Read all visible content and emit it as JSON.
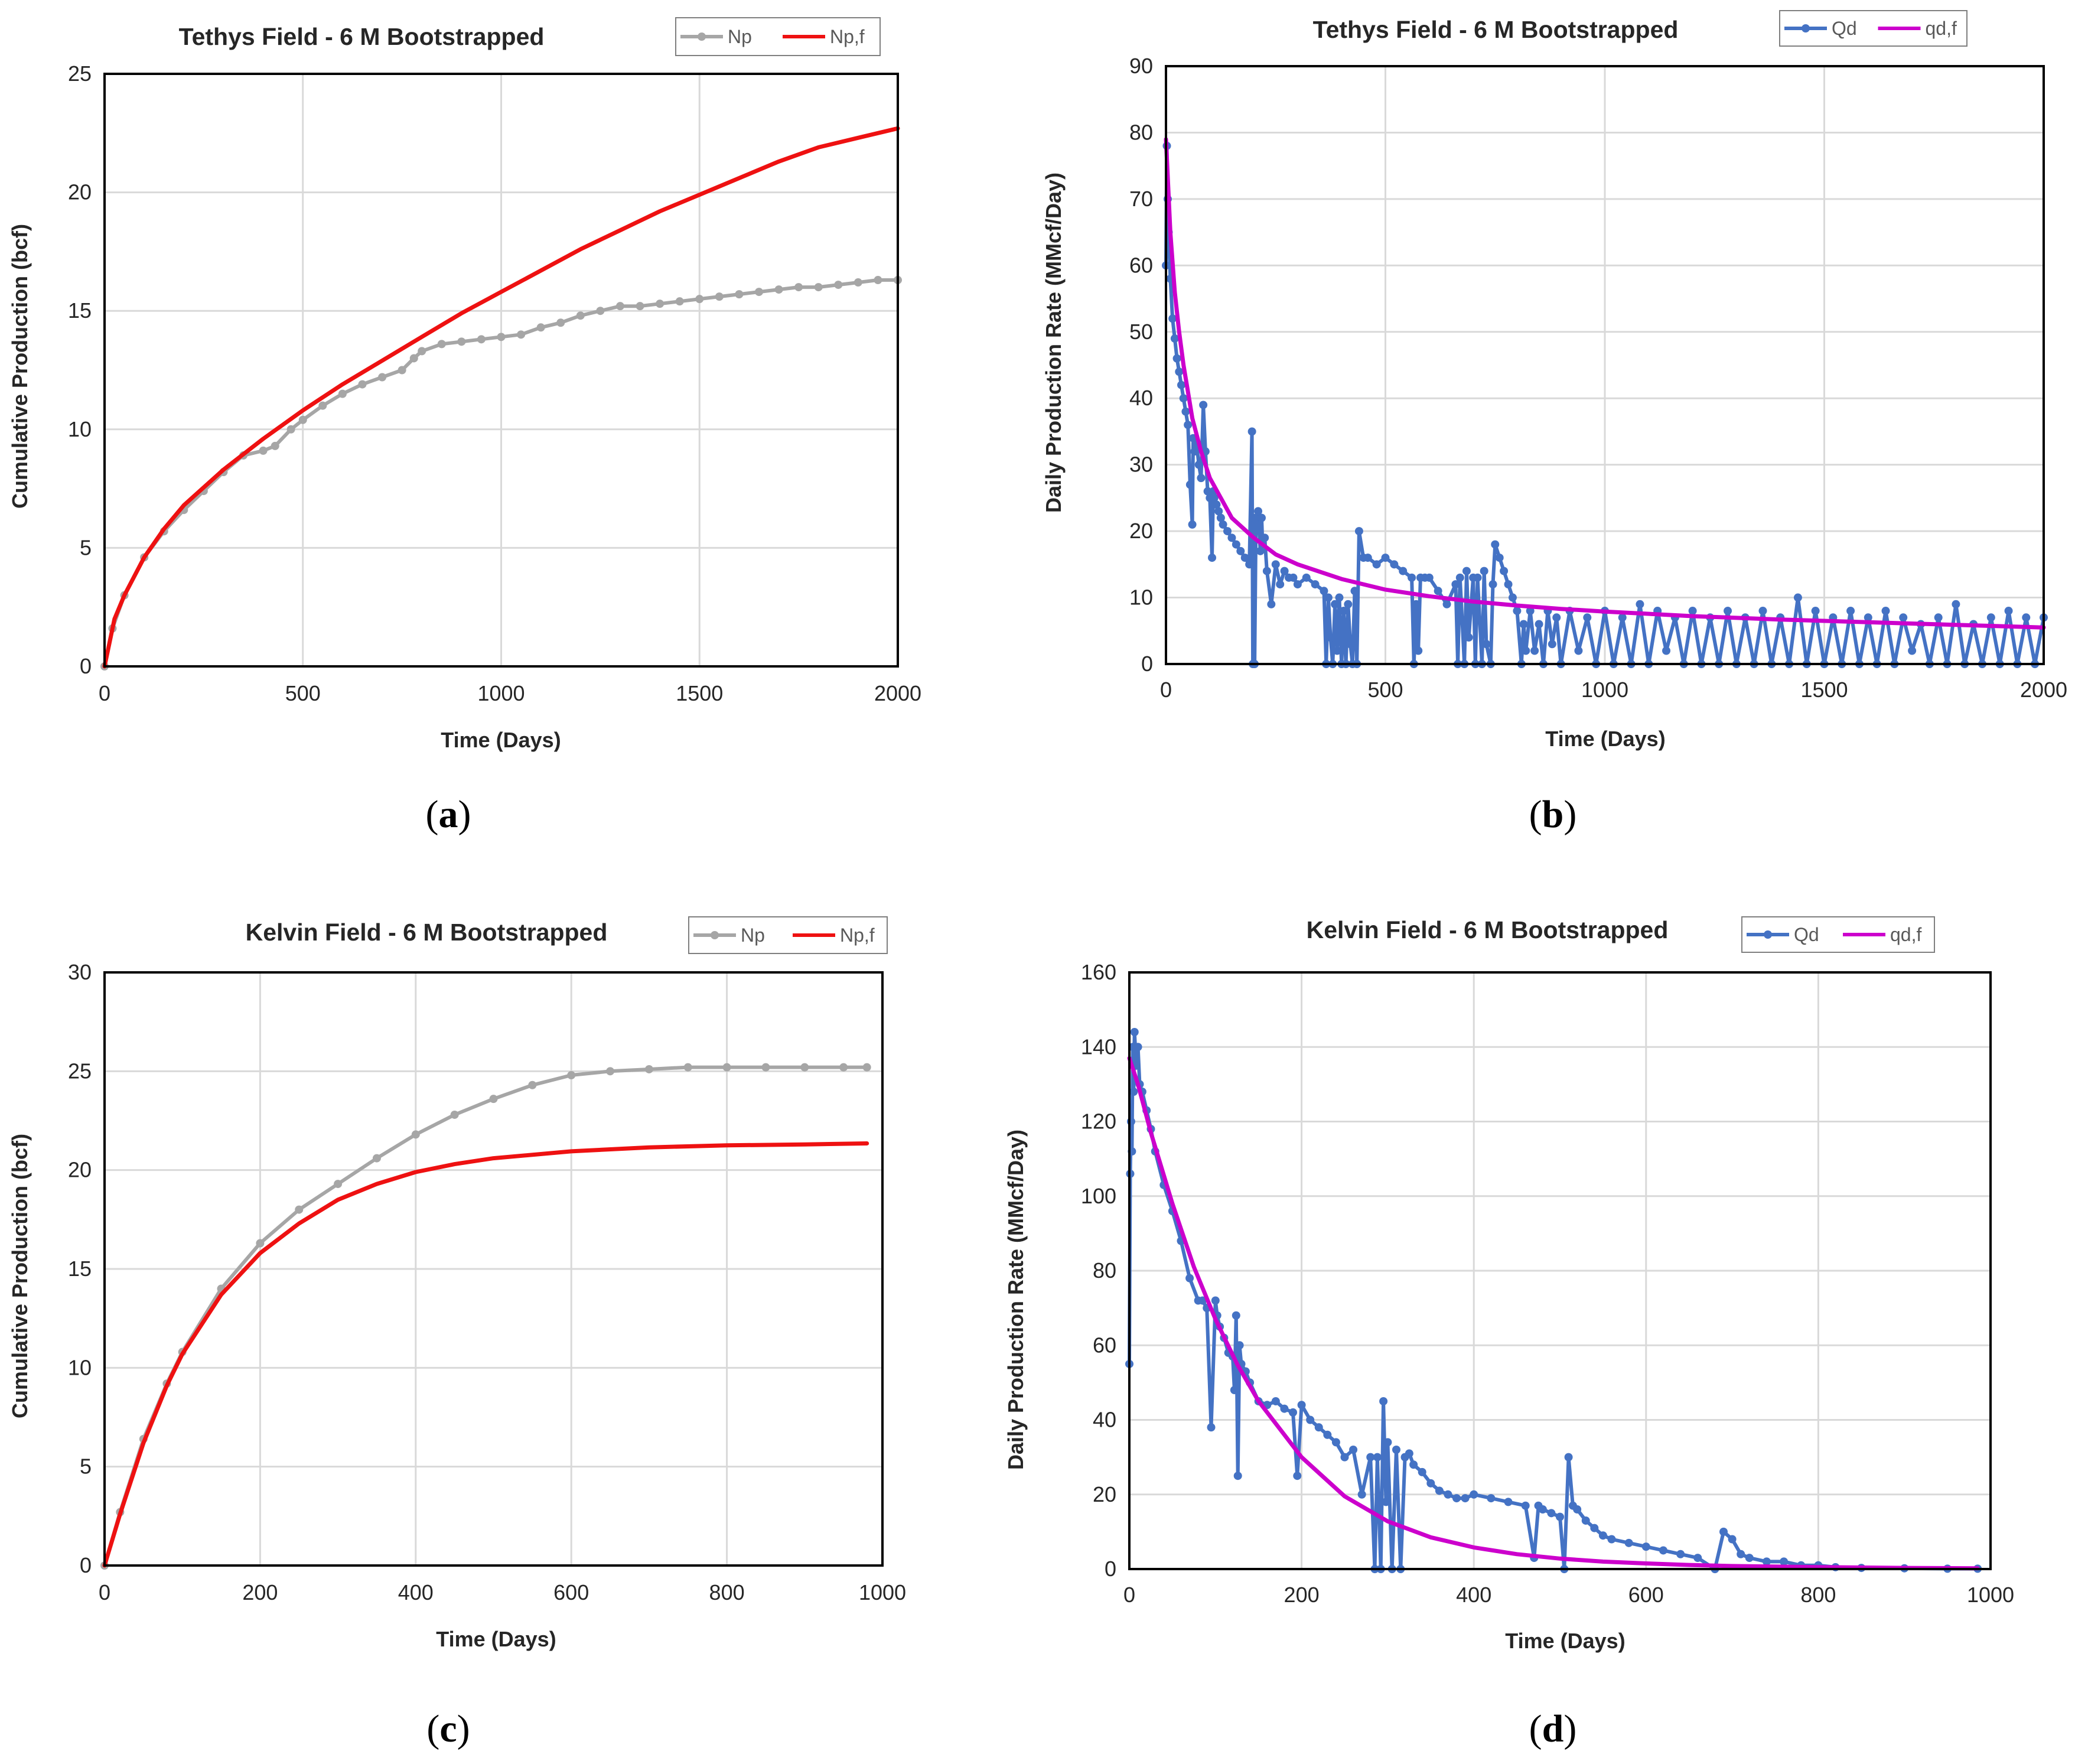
{
  "figure": {
    "panel_labels": [
      {
        "open": "(",
        "letter": "a",
        "close": ")"
      },
      {
        "open": "(",
        "letter": "b",
        "close": ")"
      },
      {
        "open": "(",
        "letter": "c",
        "close": ")"
      },
      {
        "open": "(",
        "letter": "d",
        "close": ")"
      }
    ]
  },
  "colors": {
    "np": "#a6a6a6",
    "np_fit": "#ee1111",
    "qd": "#4472c4",
    "qd_fit": "#cc00cc",
    "grid": "#d9d9d9"
  },
  "chart_data": [
    {
      "type": "line",
      "title": "Tethys Field - 6 M Bootstrapped",
      "xlabel": "Time (Days)",
      "ylabel": "Cumulative Production  (bcf)",
      "xlim": [
        0,
        2000
      ],
      "ylim": [
        0,
        25
      ],
      "xticks": [
        0,
        500,
        1000,
        1500,
        2000
      ],
      "yticks": [
        0,
        5,
        10,
        15,
        20,
        25
      ],
      "xtick_labels": [
        "0",
        "500",
        "1000",
        "1500",
        "2000"
      ],
      "ytick_labels": [
        "0",
        "5",
        "10",
        "15",
        "20",
        "25"
      ],
      "grid": true,
      "legend_position": "top-right",
      "series": [
        {
          "name": "Np",
          "style": "line-markers",
          "color": "#a6a6a6",
          "x": [
            0,
            20,
            50,
            100,
            150,
            200,
            250,
            300,
            350,
            400,
            430,
            470,
            500,
            550,
            600,
            650,
            700,
            750,
            780,
            800,
            850,
            900,
            950,
            1000,
            1050,
            1100,
            1150,
            1200,
            1250,
            1300,
            1350,
            1400,
            1450,
            1500,
            1550,
            1600,
            1650,
            1700,
            1750,
            1800,
            1850,
            1900,
            1950,
            2000
          ],
          "y": [
            0,
            1.6,
            3.0,
            4.6,
            5.7,
            6.6,
            7.4,
            8.2,
            8.9,
            9.1,
            9.3,
            10.0,
            10.4,
            11.0,
            11.5,
            11.9,
            12.2,
            12.5,
            13.0,
            13.3,
            13.6,
            13.7,
            13.8,
            13.9,
            14.0,
            14.3,
            14.5,
            14.8,
            15.0,
            15.2,
            15.2,
            15.3,
            15.4,
            15.5,
            15.6,
            15.7,
            15.8,
            15.9,
            16.0,
            16.0,
            16.1,
            16.2,
            16.3,
            16.3
          ]
        },
        {
          "name": "Np,f",
          "style": "line",
          "color": "#ee1111",
          "x": [
            0,
            25,
            50,
            100,
            150,
            200,
            300,
            400,
            500,
            600,
            700,
            800,
            900,
            1000,
            1100,
            1200,
            1300,
            1400,
            1500,
            1600,
            1700,
            1800,
            1900,
            2000
          ],
          "y": [
            0,
            2.0,
            3.0,
            4.6,
            5.8,
            6.8,
            8.3,
            9.6,
            10.8,
            11.9,
            12.9,
            13.9,
            14.9,
            15.8,
            16.7,
            17.6,
            18.4,
            19.2,
            19.9,
            20.6,
            21.3,
            21.9,
            22.3,
            22.7
          ]
        }
      ]
    },
    {
      "type": "line",
      "title": "Tethys Field - 6 M Bootstrapped",
      "xlabel": "Time (Days)",
      "ylabel": "Daily Production Rate (MMcf/Day)",
      "xlim": [
        0,
        2000
      ],
      "ylim": [
        0,
        90
      ],
      "xticks": [
        0,
        500,
        1000,
        1500,
        2000
      ],
      "yticks": [
        0,
        10,
        20,
        30,
        40,
        50,
        60,
        70,
        80,
        90
      ],
      "xtick_labels": [
        "0",
        "500",
        "1000",
        "1500",
        "2000"
      ],
      "ytick_labels": [
        "0",
        "10",
        "20",
        "30",
        "40",
        "50",
        "60",
        "70",
        "80",
        "90"
      ],
      "grid": true,
      "legend_position": "top-right",
      "series": [
        {
          "name": "Qd",
          "style": "line-markers",
          "color": "#4472c4",
          "x": [
            0,
            2,
            4,
            6,
            10,
            15,
            20,
            25,
            30,
            35,
            40,
            45,
            50,
            55,
            60,
            62,
            65,
            70,
            75,
            80,
            85,
            90,
            95,
            100,
            105,
            108,
            110,
            115,
            120,
            125,
            130,
            140,
            150,
            160,
            170,
            180,
            190,
            196,
            198,
            200,
            202,
            205,
            210,
            215,
            218,
            220,
            225,
            230,
            240,
            250,
            260,
            270,
            280,
            290,
            300,
            320,
            340,
            360,
            365,
            370,
            375,
            380,
            385,
            390,
            395,
            400,
            405,
            410,
            415,
            420,
            425,
            430,
            435,
            440,
            450,
            460,
            480,
            500,
            520,
            540,
            560,
            565,
            570,
            575,
            580,
            590,
            600,
            620,
            640,
            660,
            665,
            670,
            680,
            685,
            690,
            700,
            705,
            710,
            720,
            725,
            730,
            740,
            745,
            750,
            760,
            770,
            780,
            790,
            800,
            810,
            815,
            820,
            830,
            840,
            850,
            860,
            870,
            880,
            890,
            900,
            920,
            940,
            960,
            980,
            1000,
            1020,
            1040,
            1060,
            1080,
            1100,
            1120,
            1140,
            1160,
            1180,
            1200,
            1220,
            1240,
            1260,
            1280,
            1300,
            1320,
            1340,
            1360,
            1380,
            1400,
            1420,
            1440,
            1460,
            1480,
            1500,
            1520,
            1540,
            1560,
            1580,
            1600,
            1620,
            1640,
            1660,
            1680,
            1700,
            1720,
            1740,
            1760,
            1780,
            1800,
            1820,
            1840,
            1860,
            1880,
            1900,
            1920,
            1940,
            1960,
            1980,
            2000
          ],
          "y": [
            60,
            78,
            70,
            65,
            58,
            52,
            49,
            46,
            44,
            42,
            40,
            38,
            36,
            27,
            21,
            34,
            32,
            33,
            30,
            28,
            39,
            32,
            26,
            25,
            16,
            26,
            25,
            24,
            23,
            22,
            21,
            20,
            19,
            18,
            17,
            16,
            15,
            35,
            0,
            22,
            0,
            21,
            23,
            17,
            22,
            18,
            19,
            14,
            9,
            15,
            12,
            14,
            13,
            13,
            12,
            13,
            12,
            11,
            0,
            10,
            4,
            0,
            9,
            2,
            10,
            0,
            8,
            0,
            9,
            3,
            0,
            11,
            0,
            20,
            16,
            16,
            15,
            16,
            15,
            14,
            13,
            0,
            9,
            2,
            13,
            13,
            13,
            11,
            9,
            12,
            0,
            13,
            0,
            14,
            4,
            13,
            0,
            13,
            0,
            14,
            3,
            0,
            12,
            18,
            16,
            14,
            12,
            10,
            8,
            0,
            6,
            2,
            8,
            2,
            6,
            0,
            8,
            3,
            7,
            0,
            8,
            2,
            7,
            0,
            8,
            0,
            7,
            0,
            9,
            0,
            8,
            2,
            7,
            0,
            8,
            0,
            7,
            0,
            8,
            0,
            7,
            0,
            8,
            0,
            7,
            0,
            10,
            0,
            8,
            0,
            7,
            0,
            8,
            0,
            7,
            0,
            8,
            0,
            7,
            2,
            6,
            0,
            7,
            0,
            9,
            0,
            6,
            0,
            7,
            0,
            8,
            0,
            7,
            0,
            7
          ]
        },
        {
          "name": "qd,f",
          "style": "line",
          "color": "#cc00cc",
          "x": [
            0,
            5,
            10,
            20,
            30,
            40,
            50,
            60,
            80,
            100,
            125,
            150,
            200,
            250,
            300,
            400,
            500,
            600,
            700,
            800,
            900,
            1000,
            1200,
            1400,
            1600,
            1800,
            2000
          ],
          "y": [
            79,
            72,
            65,
            56,
            50,
            45,
            41,
            37,
            32,
            28,
            25,
            22,
            19,
            16.5,
            15,
            12.8,
            11.2,
            10.2,
            9.4,
            8.8,
            8.3,
            7.9,
            7.2,
            6.7,
            6.3,
            5.9,
            5.5
          ]
        }
      ]
    },
    {
      "type": "line",
      "title": "Kelvin Field - 6 M Bootstrapped",
      "xlabel": "Time (Days)",
      "ylabel": "Cumulative Production  (bcf)",
      "xlim": [
        0,
        1000
      ],
      "ylim": [
        0,
        30
      ],
      "xticks": [
        0,
        200,
        400,
        600,
        800,
        1000
      ],
      "yticks": [
        0,
        5,
        10,
        15,
        20,
        25,
        30
      ],
      "xtick_labels": [
        "0",
        "200",
        "400",
        "600",
        "800",
        "1000"
      ],
      "ytick_labels": [
        "0",
        "5",
        "10",
        "15",
        "20",
        "25",
        "30"
      ],
      "grid": true,
      "legend_position": "top-right",
      "series": [
        {
          "name": "Np",
          "style": "line-markers",
          "color": "#a6a6a6",
          "x": [
            0,
            20,
            50,
            80,
            100,
            150,
            200,
            250,
            300,
            350,
            400,
            450,
            500,
            550,
            600,
            650,
            700,
            750,
            800,
            850,
            900,
            950,
            980
          ],
          "y": [
            0,
            2.7,
            6.4,
            9.2,
            10.8,
            14.0,
            16.3,
            18.0,
            19.3,
            20.6,
            21.8,
            22.8,
            23.6,
            24.3,
            24.8,
            25.0,
            25.1,
            25.2,
            25.2,
            25.2,
            25.2,
            25.2,
            25.2
          ]
        },
        {
          "name": "Np,f",
          "style": "line",
          "color": "#ee1111",
          "x": [
            0,
            20,
            50,
            80,
            100,
            150,
            200,
            250,
            300,
            350,
            400,
            450,
            500,
            600,
            700,
            800,
            900,
            980
          ],
          "y": [
            0,
            2.6,
            6.2,
            9.1,
            10.7,
            13.7,
            15.8,
            17.3,
            18.5,
            19.3,
            19.9,
            20.3,
            20.6,
            20.95,
            21.15,
            21.25,
            21.3,
            21.35
          ]
        }
      ]
    },
    {
      "type": "line",
      "title": "Kelvin Field - 6 M Bootstrapped",
      "xlabel": "Time (Days)",
      "ylabel": "Daily Production Rate (MMcf/Day)",
      "xlim": [
        0,
        1000
      ],
      "ylim": [
        0,
        160
      ],
      "xticks": [
        0,
        200,
        400,
        600,
        800,
        1000
      ],
      "yticks": [
        0,
        20,
        40,
        60,
        80,
        100,
        120,
        140,
        160
      ],
      "xtick_labels": [
        "0",
        "200",
        "400",
        "600",
        "800",
        "1000"
      ],
      "ytick_labels": [
        "0",
        "20",
        "40",
        "60",
        "80",
        "100",
        "120",
        "140",
        "160"
      ],
      "grid": true,
      "legend_position": "top-right",
      "series": [
        {
          "name": "Qd",
          "style": "line-markers",
          "color": "#4472c4",
          "x": [
            0,
            1,
            2,
            3,
            4,
            5,
            6,
            8,
            10,
            12,
            15,
            20,
            25,
            30,
            40,
            50,
            60,
            70,
            80,
            85,
            90,
            95,
            100,
            102,
            105,
            110,
            115,
            120,
            122,
            124,
            126,
            128,
            130,
            135,
            140,
            150,
            160,
            170,
            180,
            190,
            195,
            200,
            210,
            220,
            230,
            240,
            250,
            260,
            270,
            280,
            285,
            288,
            292,
            295,
            298,
            300,
            305,
            310,
            315,
            320,
            325,
            330,
            340,
            350,
            360,
            370,
            380,
            390,
            400,
            420,
            440,
            460,
            470,
            475,
            480,
            490,
            500,
            505,
            510,
            515,
            520,
            530,
            540,
            550,
            560,
            580,
            600,
            620,
            640,
            660,
            680,
            690,
            700,
            710,
            720,
            740,
            760,
            780,
            800,
            820,
            850,
            900,
            950,
            985
          ],
          "y": [
            55,
            106,
            120,
            112,
            140,
            128,
            144,
            135,
            140,
            130,
            128,
            123,
            118,
            112,
            103,
            96,
            88,
            78,
            72,
            72,
            70,
            38,
            72,
            68,
            65,
            62,
            58,
            57,
            48,
            68,
            25,
            60,
            55,
            53,
            50,
            45,
            44,
            45,
            43,
            42,
            25,
            44,
            40,
            38,
            36,
            34,
            30,
            32,
            20,
            30,
            0,
            30,
            0,
            45,
            18,
            34,
            0,
            32,
            0,
            30,
            31,
            28,
            26,
            23,
            21,
            20,
            19,
            19,
            20,
            19,
            18,
            17,
            3,
            17,
            16,
            15,
            14,
            0,
            30,
            17,
            16,
            13,
            11,
            9,
            8,
            7,
            6,
            5,
            4,
            3,
            0,
            10,
            8,
            4,
            3,
            2,
            2,
            1,
            1,
            0.5,
            0.3,
            0.2,
            0.1,
            0.1
          ]
        },
        {
          "name": "qd,f",
          "style": "line",
          "color": "#cc00cc",
          "x": [
            0,
            10,
            25,
            50,
            75,
            100,
            125,
            150,
            200,
            250,
            300,
            350,
            400,
            450,
            500,
            550,
            600,
            650,
            700,
            800,
            900,
            985
          ],
          "y": [
            137,
            130,
            117,
            98,
            81,
            67,
            55,
            45,
            30,
            19.5,
            12.8,
            8.5,
            5.8,
            4.0,
            2.8,
            2.0,
            1.5,
            1.1,
            0.8,
            0.5,
            0.3,
            0.2
          ]
        }
      ]
    }
  ]
}
